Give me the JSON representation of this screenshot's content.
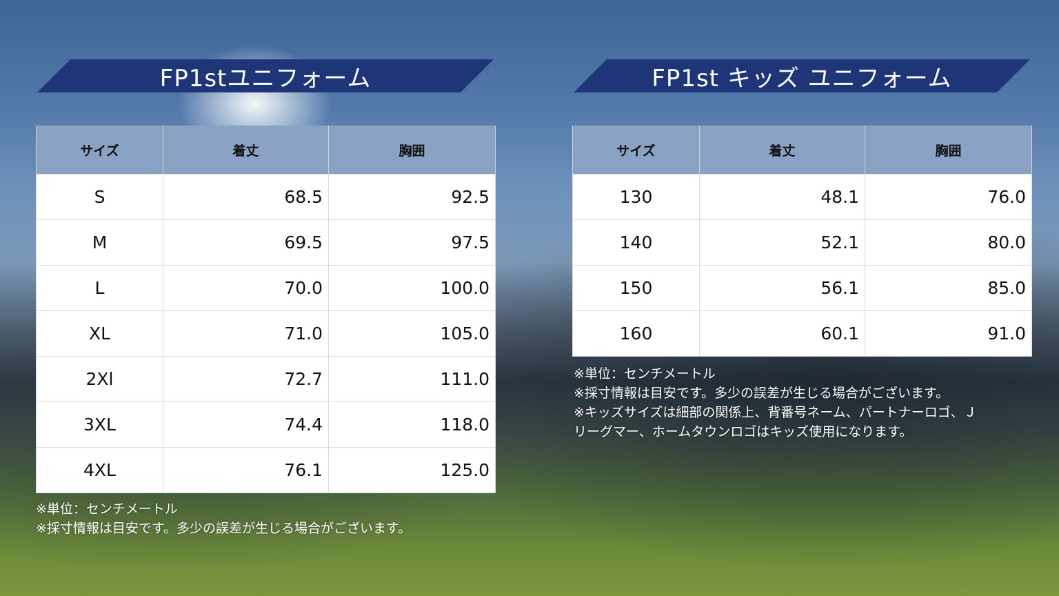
{
  "adult": {
    "title": "FP1stユニフォーム",
    "headers": [
      "サイズ",
      "着丈",
      "胸囲"
    ],
    "rows": [
      [
        "S",
        "68.5",
        "92.5"
      ],
      [
        "M",
        "69.5",
        "97.5"
      ],
      [
        "L",
        "70.0",
        "100.0"
      ],
      [
        "XL",
        "71.0",
        "105.0"
      ],
      [
        "2Xl",
        "72.7",
        "111.0"
      ],
      [
        "3XL",
        "74.4",
        "118.0"
      ],
      [
        "4XL",
        "76.1",
        "125.0"
      ]
    ],
    "notes": [
      "※単位：センチメートル",
      "※採寸情報は目安です。多少の誤差が生じる場合がございます。"
    ]
  },
  "kids": {
    "title": "FP1st キッズ ユニフォーム",
    "headers": [
      "サイズ",
      "着丈",
      "胸囲"
    ],
    "rows": [
      [
        "130",
        "48.1",
        "76.0"
      ],
      [
        "140",
        "52.1",
        "80.0"
      ],
      [
        "150",
        "56.1",
        "85.0"
      ],
      [
        "160",
        "60.1",
        "91.0"
      ]
    ],
    "notes": [
      "※単位：センチメートル",
      "※採寸情報は目安です。多少の誤差が生じる場合がございます。",
      "※キッズサイズは細部の関係上、背番号ネーム、パートナーロゴ、Ｊ",
      "リーグマー、ホームタウンロゴはキッズ使用になります。"
    ]
  }
}
